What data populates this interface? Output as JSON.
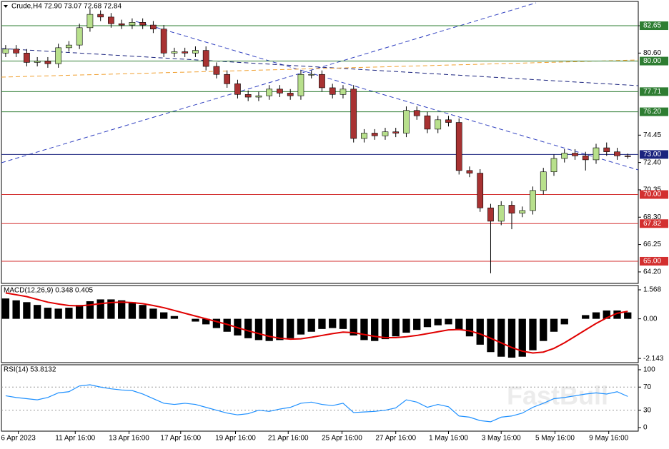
{
  "chart_data": [
    {
      "type": "candlestick",
      "title": "Crude,H4  72.90 73.07 72.68 72.84",
      "open": [
        80.6,
        80.9,
        80.6,
        79.9,
        80.0,
        79.8,
        81.0,
        81.2,
        82.5,
        83.5,
        83.3,
        82.8,
        82.7,
        82.9,
        82.7,
        82.4,
        80.6,
        80.7,
        80.6,
        80.8,
        79.6,
        79.0,
        78.3,
        77.5,
        77.3,
        77.4,
        77.9,
        77.6,
        77.4,
        79.0,
        79.0,
        78.0,
        77.5,
        77.9,
        74.2,
        74.6,
        74.4,
        74.7,
        74.6,
        76.3,
        75.9,
        74.9,
        75.6,
        75.4,
        71.8,
        71.6,
        69.0,
        68.0,
        69.2,
        68.6,
        68.8,
        70.3,
        71.7,
        72.7,
        73.1,
        72.9,
        72.6,
        73.5,
        73.2,
        72.9
      ],
      "high": [
        81.2,
        81.2,
        80.9,
        80.3,
        80.3,
        81.3,
        81.5,
        82.8,
        83.9,
        83.8,
        83.6,
        83.1,
        83.2,
        83.2,
        83.0,
        82.7,
        81.0,
        81.0,
        81.1,
        81.1,
        79.9,
        79.3,
        78.6,
        77.8,
        77.7,
        78.2,
        78.2,
        77.9,
        79.3,
        79.3,
        79.3,
        78.3,
        78.2,
        78.2,
        74.9,
        74.9,
        75.0,
        75.0,
        76.6,
        76.6,
        76.2,
        75.9,
        75.9,
        75.7,
        72.1,
        71.9,
        69.3,
        69.5,
        69.5,
        69.1,
        70.6,
        72.0,
        73.0,
        73.4,
        73.4,
        73.2,
        73.8,
        73.9,
        73.5,
        73.07
      ],
      "low": [
        80.3,
        80.3,
        79.6,
        79.6,
        79.5,
        79.5,
        80.7,
        80.9,
        82.2,
        83.0,
        82.5,
        82.4,
        82.4,
        82.4,
        82.1,
        80.3,
        80.3,
        80.3,
        80.3,
        79.3,
        78.7,
        78.0,
        77.2,
        77.0,
        77.0,
        77.1,
        77.3,
        77.1,
        77.1,
        78.7,
        77.7,
        77.2,
        77.2,
        73.9,
        73.9,
        74.1,
        74.1,
        74.3,
        74.3,
        75.6,
        74.6,
        74.6,
        75.1,
        71.5,
        71.3,
        68.7,
        64.1,
        67.7,
        67.4,
        68.3,
        68.5,
        70.0,
        71.4,
        72.4,
        72.6,
        71.8,
        72.3,
        72.9,
        72.6,
        72.68
      ],
      "close": [
        80.9,
        80.6,
        79.9,
        80.0,
        79.8,
        81.0,
        81.2,
        82.5,
        83.5,
        83.3,
        82.8,
        82.7,
        82.9,
        82.7,
        82.4,
        80.6,
        80.7,
        80.6,
        80.8,
        79.6,
        79.0,
        78.3,
        77.5,
        77.3,
        77.4,
        77.9,
        77.6,
        77.4,
        79.0,
        79.0,
        78.0,
        77.5,
        77.9,
        74.2,
        74.6,
        74.4,
        74.7,
        74.6,
        76.3,
        75.9,
        74.9,
        75.6,
        75.4,
        71.8,
        71.6,
        69.0,
        68.0,
        69.2,
        68.6,
        68.8,
        70.3,
        71.7,
        72.7,
        73.1,
        72.9,
        72.6,
        73.5,
        73.2,
        72.9,
        72.84
      ],
      "up_color": "#b8e08c",
      "down_color": "#a83232",
      "xlim": [
        -0.4,
        60
      ],
      "ylim": [
        63.34,
        84.47
      ],
      "yticks": [
        {
          "value": 82.65,
          "label": "82.65"
        },
        {
          "value": 80.6,
          "label": "80.60"
        },
        {
          "value": 74.45,
          "label": "74.45"
        },
        {
          "value": 72.4,
          "label": "72.40"
        },
        {
          "value": 70.35,
          "label": "70.35"
        },
        {
          "value": 68.3,
          "label": "68.30"
        },
        {
          "value": 66.25,
          "label": "66.25"
        },
        {
          "value": 64.2,
          "label": "64.20"
        }
      ],
      "levels": [
        {
          "value": 82.65,
          "label": "82.65",
          "color": "#2e7d32"
        },
        {
          "value": 80.0,
          "label": "80.00",
          "color": "#2e7d32"
        },
        {
          "value": 77.71,
          "label": "77.71",
          "color": "#2e7d32"
        },
        {
          "value": 76.2,
          "label": "76.20",
          "color": "#2e7d32"
        },
        {
          "value": 73.0,
          "label": "73.00",
          "color": "#1a237e"
        },
        {
          "value": 70.0,
          "label": "70.00",
          "color": "#d32f2f"
        },
        {
          "value": 67.82,
          "label": "67.82",
          "color": "#d32f2f"
        },
        {
          "value": 65.0,
          "label": "65.00",
          "color": "#d32f2f"
        }
      ],
      "xticks": [
        {
          "value": 1.2,
          "label": "6 Apr 2023"
        },
        {
          "value": 6.6,
          "label": "11 Apr 16:00"
        },
        {
          "value": 11.7,
          "label": "13 Apr 16:00"
        },
        {
          "value": 16.6,
          "label": "17 Apr 16:00"
        },
        {
          "value": 21.8,
          "label": "19 Apr 16:00"
        },
        {
          "value": 26.8,
          "label": "21 Apr 16:00"
        },
        {
          "value": 31.9,
          "label": "25 Apr 16:00"
        },
        {
          "value": 37,
          "label": "27 Apr 16:00"
        },
        {
          "value": 42,
          "label": "1 May 16:00"
        },
        {
          "value": 47,
          "label": "3 May 16:00"
        },
        {
          "value": 52.1,
          "label": "5 May 16:00"
        },
        {
          "value": 57.2,
          "label": "9 May 16:00"
        }
      ]
    },
    {
      "type": "macd",
      "title": "MACD(12,26,9) 0.348 0.405",
      "histogram": [
        1.1,
        1.0,
        0.9,
        0.75,
        0.6,
        0.55,
        0.6,
        0.75,
        0.95,
        1.05,
        1.05,
        1.0,
        0.9,
        0.75,
        0.55,
        0.35,
        0.15,
        0.0,
        -0.15,
        -0.3,
        -0.5,
        -0.7,
        -0.9,
        -1.05,
        -1.15,
        -1.2,
        -1.15,
        -1.05,
        -0.85,
        -0.7,
        -0.55,
        -0.5,
        -0.55,
        -0.9,
        -1.15,
        -1.2,
        -1.1,
        -0.95,
        -0.75,
        -0.6,
        -0.45,
        -0.35,
        -0.3,
        -0.6,
        -0.95,
        -1.4,
        -1.8,
        -2.05,
        -2.1,
        -2.05,
        -1.7,
        -1.2,
        -0.7,
        -0.3,
        0.0,
        0.2,
        0.35,
        0.45,
        0.45,
        0.348
      ],
      "signal": [
        1.4,
        1.3,
        1.2,
        1.05,
        0.9,
        0.8,
        0.72,
        0.7,
        0.75,
        0.82,
        0.88,
        0.9,
        0.88,
        0.82,
        0.72,
        0.6,
        0.45,
        0.3,
        0.15,
        0.0,
        -0.15,
        -0.3,
        -0.48,
        -0.65,
        -0.8,
        -0.95,
        -1.05,
        -1.1,
        -1.08,
        -1.0,
        -0.9,
        -0.8,
        -0.72,
        -0.75,
        -0.85,
        -0.95,
        -1.02,
        -1.02,
        -0.97,
        -0.9,
        -0.8,
        -0.7,
        -0.6,
        -0.58,
        -0.65,
        -0.82,
        -1.05,
        -1.3,
        -1.55,
        -1.75,
        -1.85,
        -1.8,
        -1.6,
        -1.3,
        -0.95,
        -0.6,
        -0.25,
        0.05,
        0.3,
        0.405
      ],
      "histogram_color": "#000000",
      "signal_color": "#e00000",
      "ylim": [
        -2.37,
        1.8
      ],
      "yticks": [
        1.568,
        {
          "value": 0,
          "label": "0.00"
        },
        -2.143
      ]
    },
    {
      "type": "line",
      "title": "RSI(14) 53.8132",
      "values": [
        55,
        52,
        50,
        48,
        52,
        60,
        62,
        72,
        74,
        70,
        67,
        65,
        64,
        58,
        50,
        42,
        40,
        42,
        40,
        35,
        30,
        25,
        22,
        24,
        30,
        28,
        32,
        35,
        42,
        44,
        40,
        38,
        42,
        26,
        27,
        28,
        30,
        34,
        48,
        44,
        35,
        40,
        36,
        20,
        18,
        12,
        10,
        18,
        20,
        25,
        35,
        42,
        50,
        52,
        55,
        58,
        60,
        58,
        62,
        53.8132
      ],
      "color": "#1e90ff",
      "ylim": [
        -6.2,
        108.6
      ],
      "yticks": [
        100,
        70,
        30,
        0
      ],
      "levels": [
        70,
        30
      ],
      "watermark": "FastBull"
    }
  ]
}
